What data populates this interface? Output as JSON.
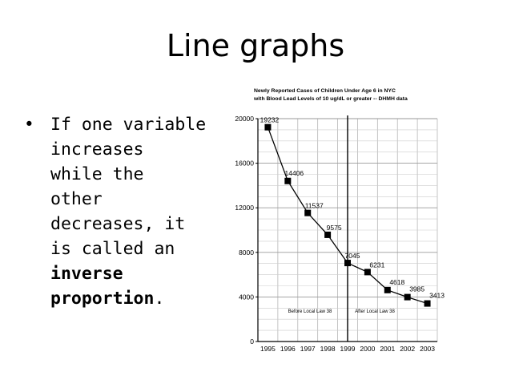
{
  "slide": {
    "title": "Line graphs",
    "bullet": {
      "symbol": "•",
      "lines": [
        "If one variable",
        "increases",
        "while the",
        "other",
        "decreases, it",
        "is called an"
      ],
      "bold_lines": [
        "inverse",
        "proportion"
      ],
      "end_punct": "."
    }
  },
  "chart_data": {
    "type": "line",
    "title_lines": [
      "Newly Reported Cases of Children Under Age 6 in NYC",
      "with Blood Lead Levels of 10 ug/dL or greater -- DHMH data"
    ],
    "categories": [
      "1995",
      "1996",
      "1997",
      "1998",
      "1999",
      "2000",
      "2001",
      "2002",
      "2003"
    ],
    "values": [
      19232,
      14406,
      11537,
      9575,
      7045,
      6231,
      4618,
      3985,
      3413
    ],
    "ylim": [
      0,
      20000
    ],
    "y_ticks": [
      0,
      4000,
      8000,
      12000,
      16000,
      20000
    ],
    "grid": true,
    "marker": "square",
    "line_color": "#000000",
    "annotations": {
      "divider_at": "1999",
      "before_label": "Before Local Law 38",
      "after_label": "After Local Law 38"
    }
  }
}
